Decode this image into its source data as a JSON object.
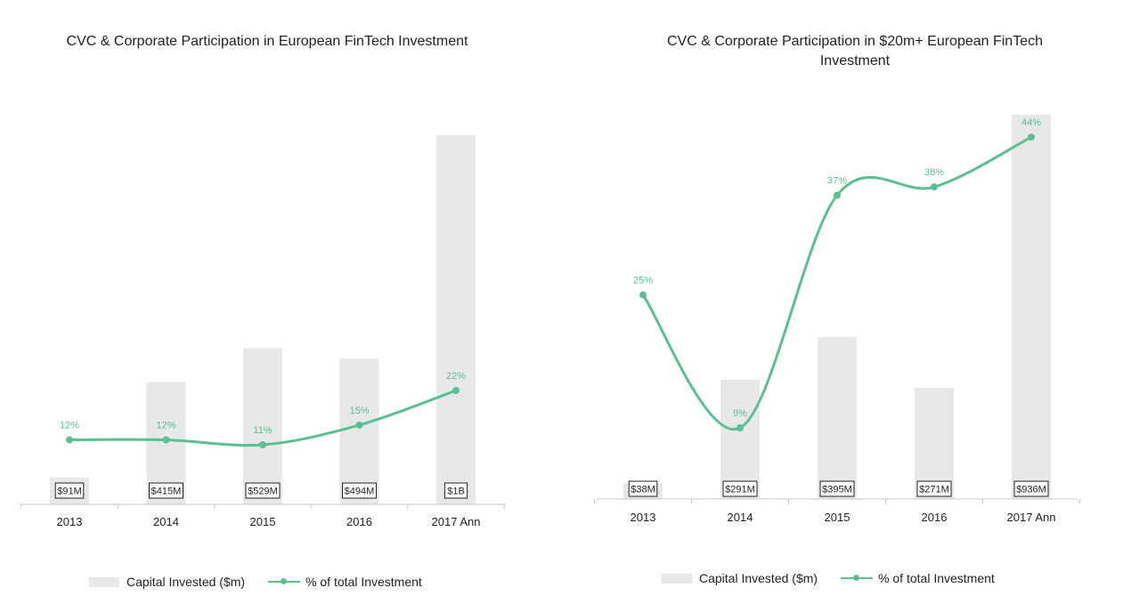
{
  "colors": {
    "bar": "#e8e8e8",
    "line": "#5bbf92",
    "axis": "#c8c8c8"
  },
  "chart_data": [
    {
      "type": "bar",
      "title": "CVC & Corporate Participation in European FinTech Investment",
      "categories": [
        "2013",
        "2014",
        "2015",
        "2016",
        "2017 Ann"
      ],
      "series": [
        {
          "name": "Capital Invested ($m)",
          "type": "bar",
          "values": [
            91,
            415,
            529,
            494,
            1250
          ],
          "labels": [
            "$91M",
            "$415M",
            "$529M",
            "$494M",
            "$1B"
          ]
        },
        {
          "name": "% of total Investment",
          "type": "line",
          "values": [
            12,
            12,
            11,
            15,
            22
          ],
          "labels": [
            "12%",
            "12%",
            "11%",
            "15%",
            "22%"
          ]
        }
      ],
      "legend": "bottom",
      "grid": false
    },
    {
      "type": "bar",
      "title": "CVC & Corporate Participation in $20m+ European FinTech Investment",
      "categories": [
        "2013",
        "2014",
        "2015",
        "2016",
        "2017 Ann"
      ],
      "series": [
        {
          "name": "Capital Invested ($m)",
          "type": "bar",
          "values": [
            38,
            291,
            395,
            271,
            936
          ],
          "labels": [
            "$38M",
            "$291M",
            "$395M",
            "$271M",
            "$936M"
          ]
        },
        {
          "name": "% of total Investment",
          "type": "line",
          "values": [
            25,
            9,
            37,
            38,
            44
          ],
          "labels": [
            "25%",
            "9%",
            "37%",
            "38%",
            "44%"
          ]
        }
      ],
      "legend": "bottom",
      "grid": false
    }
  ]
}
